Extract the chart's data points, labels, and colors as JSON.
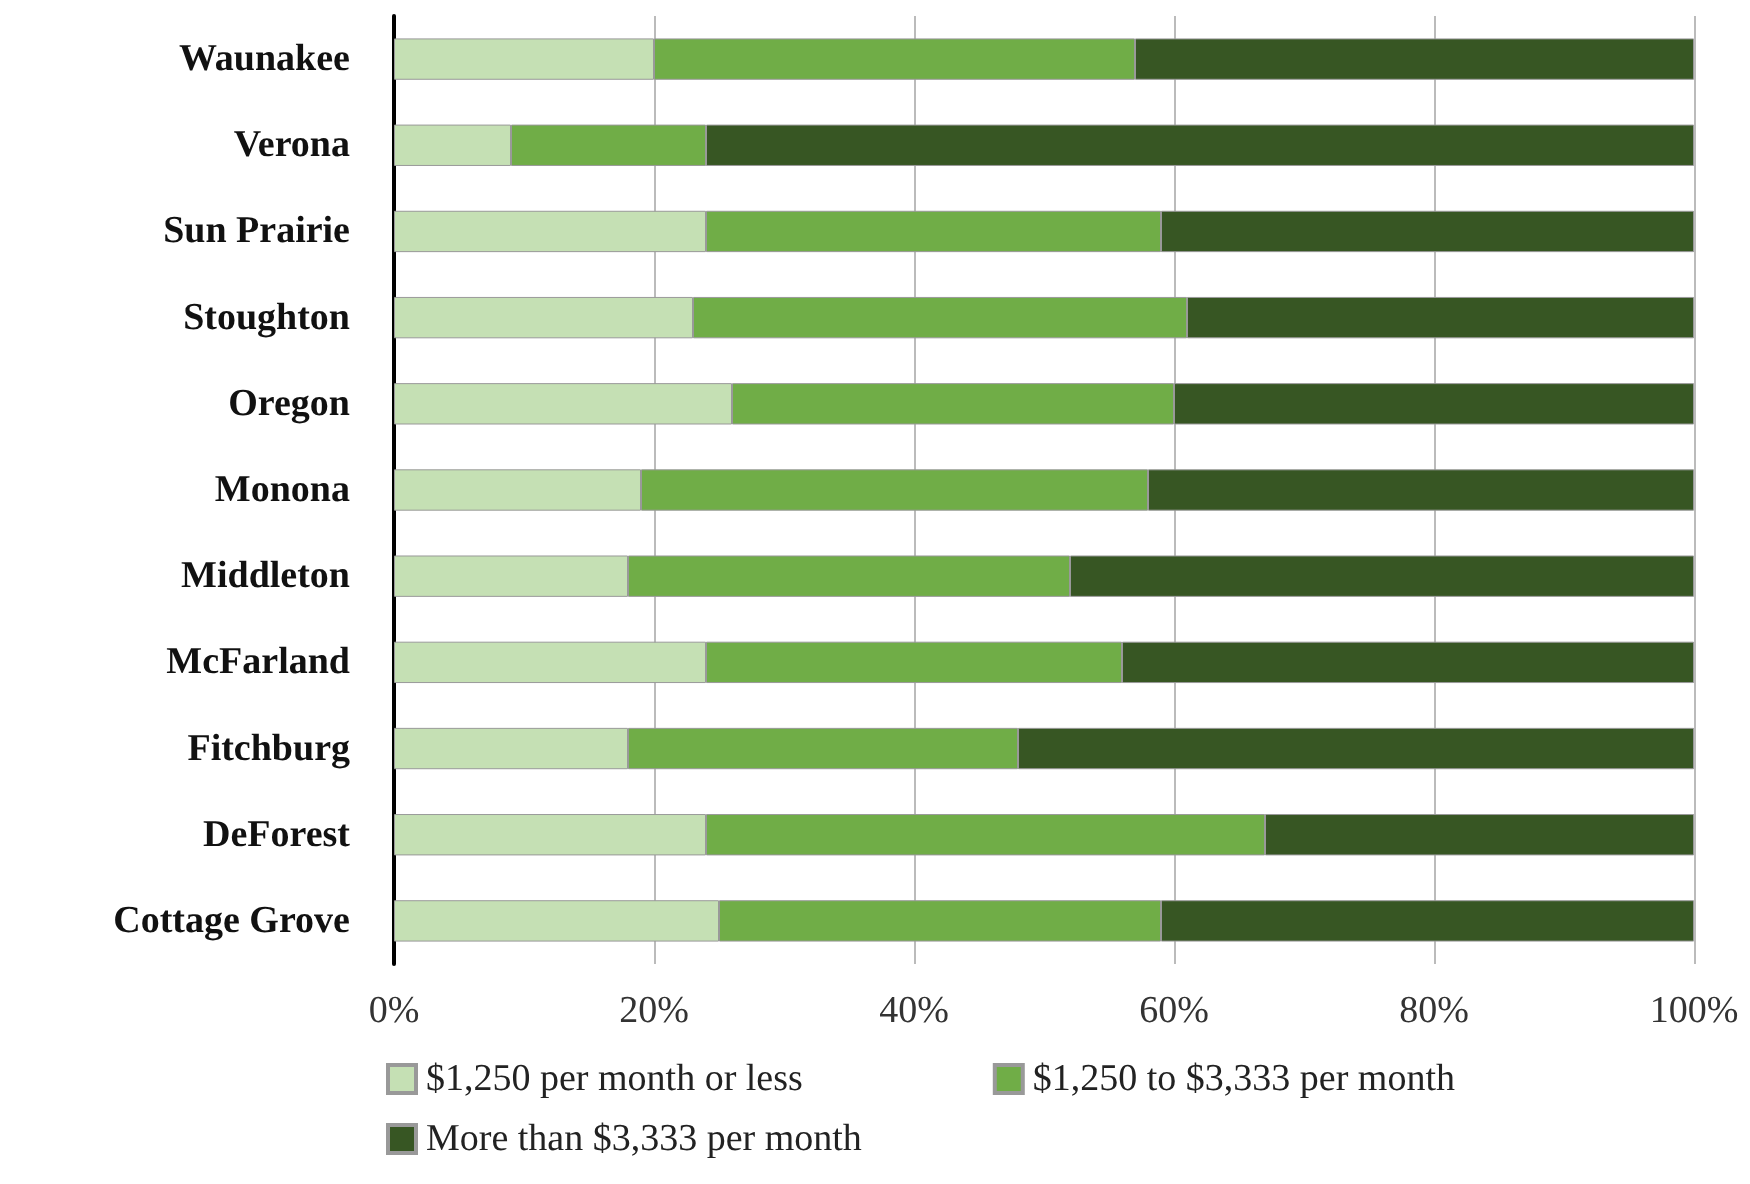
{
  "chart_data": {
    "type": "bar",
    "orientation": "horizontal",
    "stacked": true,
    "categories": [
      "Waunakee",
      "Verona",
      "Sun Prairie",
      "Stoughton",
      "Oregon",
      "Monona",
      "Middleton",
      "McFarland",
      "Fitchburg",
      "DeForest",
      "Cottage Grove"
    ],
    "series": [
      {
        "name": "$1,250 per month or less",
        "color": "#c5e0b4",
        "values": [
          20,
          9,
          24,
          23,
          26,
          19,
          18,
          24,
          18,
          24,
          25
        ]
      },
      {
        "name": "$1,250 to $3,333 per month",
        "color": "#70ad47",
        "values": [
          37,
          15,
          35,
          38,
          34,
          39,
          34,
          32,
          30,
          43,
          34
        ]
      },
      {
        "name": "More than $3,333 per month",
        "color": "#375623",
        "values": [
          43,
          76,
          41,
          39,
          40,
          42,
          48,
          44,
          52,
          33,
          41
        ]
      }
    ],
    "xlim": [
      0,
      100
    ],
    "xticks": [
      {
        "value": 0,
        "label": "0%"
      },
      {
        "value": 20,
        "label": "20%"
      },
      {
        "value": 40,
        "label": "40%"
      },
      {
        "value": 60,
        "label": "60%"
      },
      {
        "value": 80,
        "label": "80%"
      },
      {
        "value": 100,
        "label": "100%"
      }
    ],
    "grid": "x",
    "legend": "bottom"
  }
}
